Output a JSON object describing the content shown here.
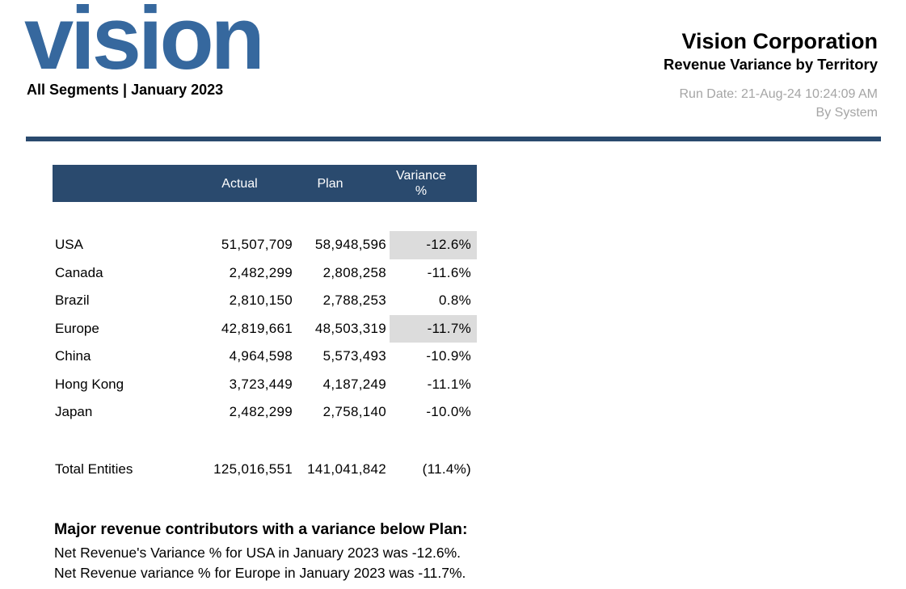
{
  "logo": {
    "text": "vision",
    "tagline": "All Segments | January 2023"
  },
  "header": {
    "company": "Vision Corporation",
    "report_title": "Revenue Variance by Territory",
    "run_date": "Run Date: 21-Aug-24 10:24:09 AM",
    "run_by": "By System"
  },
  "table": {
    "columns": [
      "",
      "Actual",
      "Plan",
      "Variance %"
    ],
    "rows": [
      {
        "entity": "USA",
        "actual": "51,507,709",
        "plan": "58,948,596",
        "variance": "-12.6%",
        "highlight": true
      },
      {
        "entity": "Canada",
        "actual": "2,482,299",
        "plan": "2,808,258",
        "variance": "-11.6%",
        "highlight": false
      },
      {
        "entity": "Brazil",
        "actual": "2,810,150",
        "plan": "2,788,253",
        "variance": "0.8%",
        "highlight": false
      },
      {
        "entity": "Europe",
        "actual": "42,819,661",
        "plan": "48,503,319",
        "variance": "-11.7%",
        "highlight": true
      },
      {
        "entity": "China",
        "actual": "4,964,598",
        "plan": "5,573,493",
        "variance": "-10.9%",
        "highlight": false
      },
      {
        "entity": "Hong Kong",
        "actual": "3,723,449",
        "plan": "4,187,249",
        "variance": "-11.1%",
        "highlight": false
      },
      {
        "entity": "Japan",
        "actual": "2,482,299",
        "plan": "2,758,140",
        "variance": "-10.0%",
        "highlight": false
      }
    ],
    "total": {
      "entity": "Total Entities",
      "actual": "125,016,551",
      "plan": "141,041,842",
      "variance": "(11.4%)"
    }
  },
  "footer": {
    "heading": "Major revenue contributors with a variance below Plan:",
    "lines": [
      "Net Revenue's Variance % for USA in January 2023 was -12.6%.",
      "Net Revenue variance % for Europe in January 2023 was -11.7%."
    ]
  },
  "colors": {
    "navy": "#2a4a6e",
    "logo_blue": "#36689e",
    "highlight_gray": "#dcdcdc",
    "muted_text": "#a5a5a5"
  }
}
